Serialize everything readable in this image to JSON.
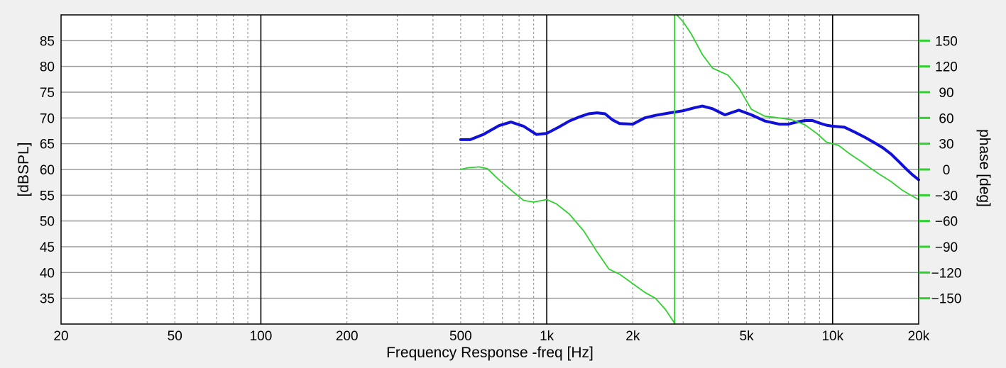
{
  "chart_data": {
    "type": "line",
    "title": "",
    "xlabel": "Frequency Response -freq [Hz]",
    "ylabel": "[dBSPL]",
    "y2label": "phase [deg]",
    "x_scale": "log",
    "xlim": [
      20,
      20000
    ],
    "ylim": [
      30,
      90
    ],
    "y2lim": [
      -180,
      180
    ],
    "grid": true,
    "x_ticks": [
      {
        "value": 20,
        "label": "20"
      },
      {
        "value": 50,
        "label": "50"
      },
      {
        "value": 100,
        "label": "100"
      },
      {
        "value": 200,
        "label": "200"
      },
      {
        "value": 500,
        "label": "500"
      },
      {
        "value": 1000,
        "label": "1k"
      },
      {
        "value": 2000,
        "label": "2k"
      },
      {
        "value": 5000,
        "label": "5k"
      },
      {
        "value": 10000,
        "label": "10k"
      },
      {
        "value": 20000,
        "label": "20k"
      }
    ],
    "y_ticks": [
      35,
      40,
      45,
      50,
      55,
      60,
      65,
      70,
      75,
      80,
      85
    ],
    "y2_ticks": [
      {
        "value": -150,
        "label": "−150"
      },
      {
        "value": -120,
        "label": "−120"
      },
      {
        "value": -90,
        "label": "−90"
      },
      {
        "value": -60,
        "label": "−60"
      },
      {
        "value": -30,
        "label": "−30"
      },
      {
        "value": 0,
        "label": "0"
      },
      {
        "value": 30,
        "label": "30"
      },
      {
        "value": 60,
        "label": "60"
      },
      {
        "value": 90,
        "label": "90"
      },
      {
        "value": 120,
        "label": "120"
      },
      {
        "value": 150,
        "label": "150"
      }
    ],
    "series": [
      {
        "color": "#1010d8",
        "axis": "left",
        "x": [
          500,
          540,
          600,
          680,
          750,
          830,
          920,
          1000,
          1100,
          1200,
          1300,
          1400,
          1500,
          1600,
          1700,
          1800,
          2000,
          2200,
          2400,
          2700,
          3000,
          3300,
          3500,
          3800,
          4200,
          4700,
          5200,
          5800,
          6500,
          7000,
          7500,
          8000,
          8500,
          9000,
          9500,
          10000,
          11000,
          12000,
          13000,
          14000,
          15000,
          16000,
          17000,
          18000,
          19000,
          20000
        ],
        "y": [
          65.8,
          65.8,
          66.8,
          68.5,
          69.2,
          68.4,
          66.8,
          67.0,
          68.2,
          69.4,
          70.2,
          70.8,
          71.0,
          70.8,
          69.6,
          68.9,
          68.8,
          70.0,
          70.5,
          71.0,
          71.4,
          72.0,
          72.3,
          71.8,
          70.6,
          71.5,
          70.6,
          69.4,
          68.8,
          68.8,
          69.2,
          69.5,
          69.5,
          69.0,
          68.6,
          68.4,
          68.2,
          67.2,
          66.2,
          65.2,
          64.2,
          63.0,
          61.6,
          60.2,
          59.0,
          58.0
        ]
      },
      {
        "color": "#2ed12e",
        "axis": "right",
        "x": [
          500,
          530,
          580,
          620,
          680,
          750,
          830,
          900,
          1000,
          1080,
          1200,
          1350,
          1500,
          1650,
          1800,
          2000,
          2200,
          2400,
          2600,
          2800,
          2850,
          3000,
          3200,
          3500,
          3800,
          4300,
          4700,
          5200,
          5800,
          6500,
          7200,
          8000,
          8800,
          9500,
          10500,
          11500,
          12500,
          13500,
          14500,
          16000,
          17500,
          19000,
          20000
        ],
        "y": [
          0,
          2,
          3,
          1,
          -12,
          -24,
          -36,
          -38,
          -35,
          -40,
          -52,
          -72,
          -96,
          -116,
          -122,
          -133,
          -143,
          -150,
          -163,
          -179,
          180,
          172,
          158,
          134,
          118,
          110,
          95,
          70,
          62,
          60,
          58,
          52,
          42,
          32,
          28,
          18,
          10,
          2,
          -5,
          -14,
          -24,
          -31,
          -35
        ]
      }
    ]
  }
}
